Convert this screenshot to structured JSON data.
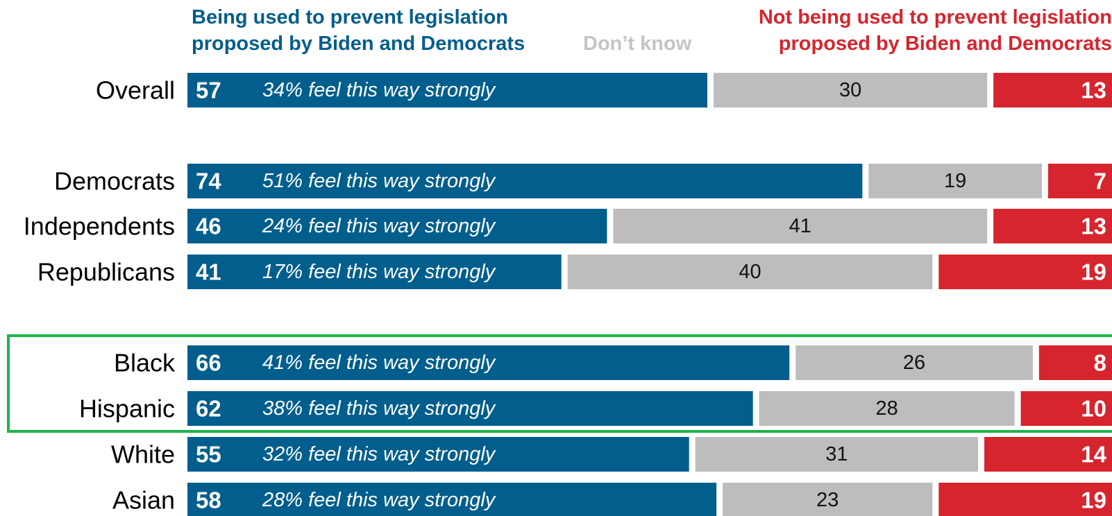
{
  "chart_data": {
    "type": "bar",
    "orientation": "horizontal",
    "stacked": true,
    "title": "",
    "xlabel": "",
    "ylabel": "",
    "series": [
      {
        "name": "Being used to prevent legislation proposed by Biden and Democrats",
        "values": [
          57,
          74,
          46,
          41,
          66,
          62,
          55,
          58
        ]
      },
      {
        "name": "Don’t know",
        "values": [
          30,
          19,
          41,
          40,
          26,
          28,
          31,
          23
        ]
      },
      {
        "name": "Not being used to prevent legislation proposed by Biden and Democrats",
        "values": [
          13,
          7,
          13,
          19,
          8,
          10,
          14,
          19
        ]
      }
    ],
    "categories": [
      "Overall",
      "Democrats",
      "Independents",
      "Republicans",
      "Black",
      "Hispanic",
      "White",
      "Asian"
    ],
    "strongly_notes": [
      "34% feel this way strongly",
      "51% feel this way strongly",
      "24% feel this way strongly",
      "17% feel this way strongly",
      "41% feel this way strongly",
      "38% feel this way strongly",
      "32% feel this way strongly",
      "28% feel this way strongly"
    ],
    "groups": [
      {
        "rows": [
          "Overall"
        ]
      },
      {
        "rows": [
          "Democrats",
          "Independents",
          "Republicans"
        ]
      },
      {
        "rows": [
          "Black",
          "Hispanic",
          "White",
          "Asian"
        ],
        "highlighted": [
          "Black",
          "Hispanic"
        ]
      }
    ],
    "legend": {
      "used_lines": [
        "Being used to prevent legislation",
        "proposed by Biden and Democrats"
      ],
      "dont_know": "Don’t know",
      "not_lines": [
        "Not being used to prevent legislation",
        "proposed by Biden and Democrats"
      ]
    },
    "colors": {
      "used": "#025e8c",
      "dont_know": "#bdbdbd",
      "not_used": "#d6252e",
      "highlight_border": "#1db34a"
    },
    "xlim": [
      0,
      100
    ]
  }
}
